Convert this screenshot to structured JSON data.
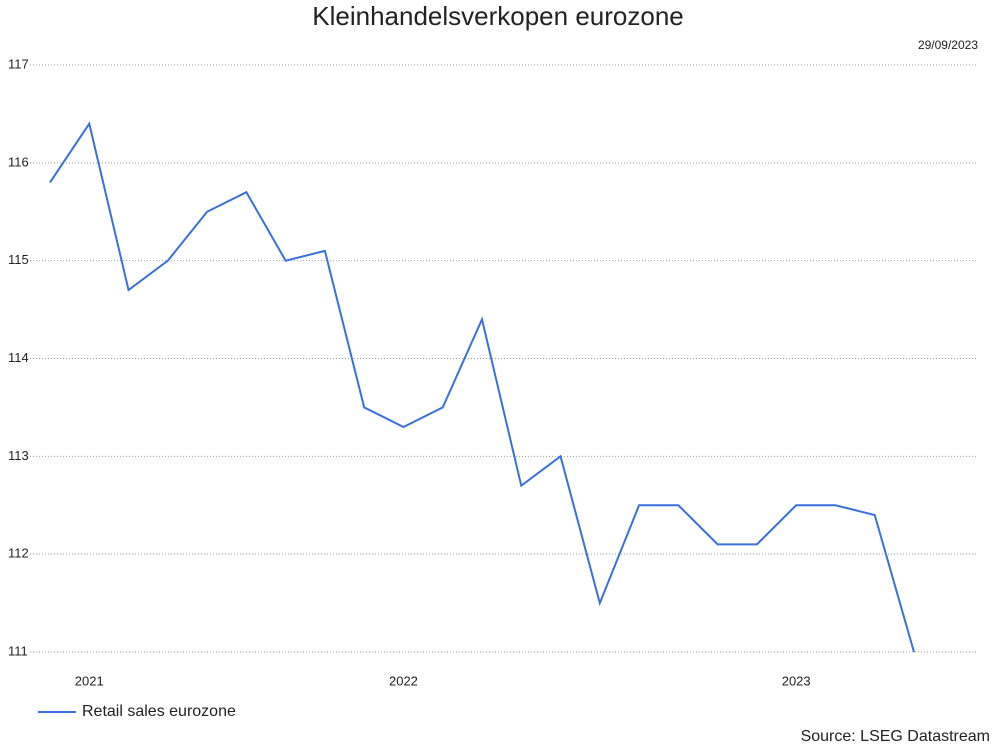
{
  "chart_data": {
    "type": "line",
    "title": "Kleinhandelsverkopen eurozone",
    "date": "29/09/2023",
    "source": "Source: LSEG Datastream",
    "categories": [
      null,
      "2021",
      null,
      null,
      null,
      null,
      null,
      null,
      null,
      "2022",
      null,
      null,
      null,
      null,
      null,
      null,
      null,
      null,
      null,
      "2023",
      null,
      null,
      null
    ],
    "series": [
      {
        "name": "Retail sales eurozone",
        "color": "#3b6fdc",
        "values": [
          115.8,
          116.4,
          114.7,
          115.0,
          115.5,
          115.7,
          115.0,
          115.1,
          113.5,
          113.3,
          113.5,
          114.4,
          112.7,
          113.0,
          111.5,
          112.5,
          112.5,
          112.1,
          112.1,
          112.5,
          112.5,
          112.4,
          111.0
        ]
      }
    ],
    "ylim": [
      111,
      117
    ],
    "yticks": [
      111,
      112,
      113,
      114,
      115,
      116,
      117
    ],
    "grid": true
  }
}
